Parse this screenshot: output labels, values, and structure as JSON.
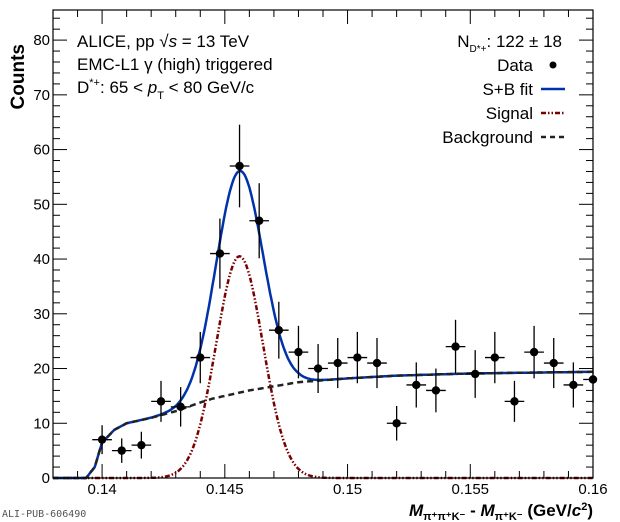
{
  "chart_data": {
    "type": "scatter",
    "xlabel": "M_{π⁺π⁺K⁻} - M_{π⁺K⁻} (GeV/c²)",
    "xlabel_parts": {
      "m1": "M",
      "sub1": "π⁺π⁺K⁻",
      "minus": " - ",
      "m2": "M",
      "sub2": "π⁺K⁻",
      "unit": " (GeV/",
      "c": "c",
      "sup": "2",
      "close": ")"
    },
    "ylabel": "Counts",
    "xlim": [
      0.138,
      0.16
    ],
    "ylim": [
      0,
      85.5
    ],
    "x_ticks": [
      0.14,
      0.145,
      0.15,
      0.155,
      0.16
    ],
    "x_tick_labels": [
      "0.14",
      "0.145",
      "0.15",
      "0.155",
      "0.16"
    ],
    "y_ticks": [
      0,
      10,
      20,
      30,
      40,
      50,
      60,
      70,
      80
    ],
    "y_tick_labels": [
      "0",
      "10",
      "20",
      "30",
      "40",
      "50",
      "60",
      "70",
      "80"
    ],
    "bin_half_width": 0.0004,
    "series": [
      {
        "name": "Data",
        "marker": "circle",
        "color": "#000000",
        "x": [
          0.14,
          0.1408,
          0.1416,
          0.1424,
          0.1432,
          0.144,
          0.1448,
          0.1456,
          0.1464,
          0.1472,
          0.148,
          0.1488,
          0.1496,
          0.1504,
          0.1512,
          0.152,
          0.1528,
          0.1536,
          0.1544,
          0.1552,
          0.156,
          0.1568,
          0.1576,
          0.1584,
          0.1592,
          0.16
        ],
        "y": [
          7,
          5,
          6,
          14,
          13,
          22,
          41,
          57,
          47,
          27,
          23,
          20,
          21,
          22,
          21,
          10,
          17,
          16,
          24,
          19,
          22,
          14,
          23,
          21,
          17,
          18
        ]
      },
      {
        "name": "S+B fit",
        "style": "solid",
        "color": "#0033aa"
      },
      {
        "name": "Signal",
        "style": "dash-dot-dot",
        "color": "#7a0000",
        "gauss_mean": 0.1456,
        "gauss_amplitude": 40.5,
        "gauss_sigma": 0.00095
      },
      {
        "name": "Background",
        "style": "dashed",
        "color": "#222222",
        "points": [
          [
            0.13935,
            0
          ],
          [
            0.1397,
            2
          ],
          [
            0.14,
            6.5
          ],
          [
            0.1405,
            8.8
          ],
          [
            0.141,
            10
          ],
          [
            0.142,
            11
          ],
          [
            0.143,
            12.2
          ],
          [
            0.144,
            13.8
          ],
          [
            0.1445,
            14.5
          ],
          [
            0.146,
            16
          ],
          [
            0.148,
            17.5
          ],
          [
            0.15,
            18.2
          ],
          [
            0.152,
            18.7
          ],
          [
            0.155,
            19.1
          ],
          [
            0.16,
            19.4
          ]
        ]
      }
    ],
    "legend": {
      "placement": "top-right",
      "yield_label": "N",
      "yield_sub": "D*+",
      "yield_value": ": 122 ± 18",
      "entries": [
        "Data",
        "S+B fit",
        "Signal",
        "Background"
      ]
    },
    "annotations": {
      "line1_a": "ALICE, pp ",
      "line1_sqrt": "√",
      "line1_s": "s",
      "line1_b": " = 13 TeV",
      "line2": "EMC-L1 γ (high) triggered",
      "line3_a": "D",
      "line3_sup": "*+",
      "line3_b": ": 65 < ",
      "line3_p": "p",
      "line3_sub": "T",
      "line3_c": " < 80 GeV/c"
    },
    "watermark": "ALI-PUB-606490"
  }
}
